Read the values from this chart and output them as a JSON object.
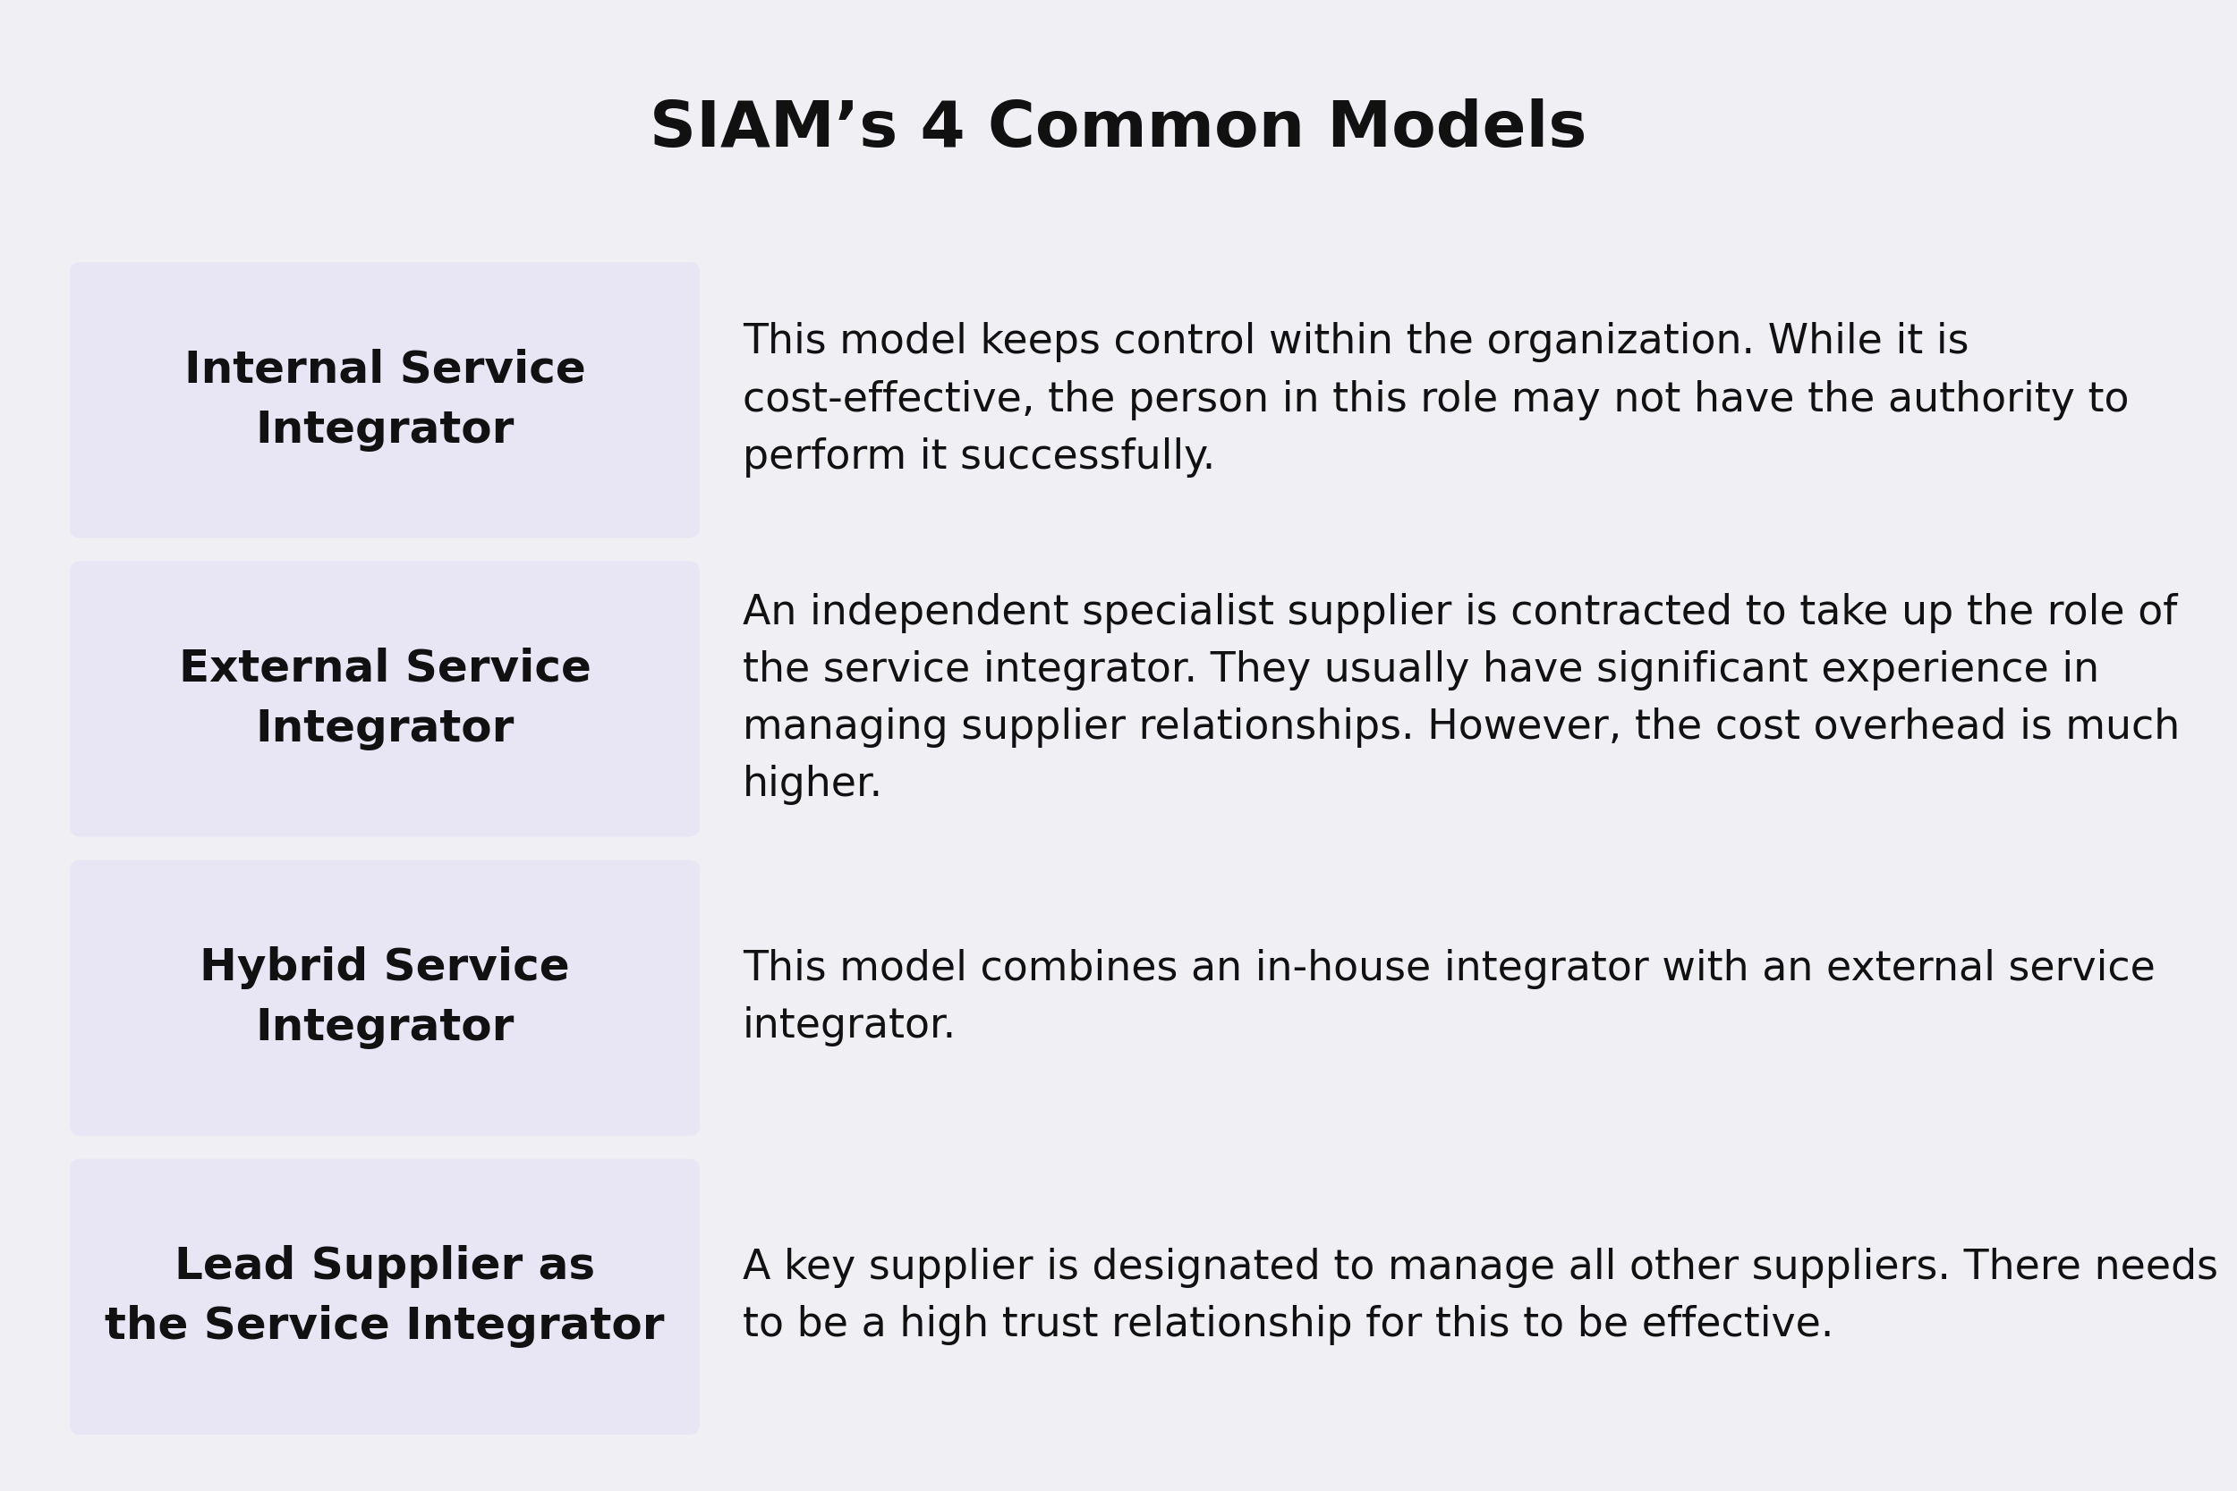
{
  "title": "SIAM’s 4 Common Models",
  "background_color": "#f0eff4",
  "box_color": "#e8e6f5",
  "title_fontsize": 52,
  "label_fontsize": 36,
  "desc_fontsize": 33,
  "text_color": "#111111",
  "rows": [
    {
      "label": "Internal Service\nIntegrator",
      "description": "This model keeps control within the organization. While it is\ncost-effective, the person in this role may not have the authority to\nperform it successfully."
    },
    {
      "label": "External Service\nIntegrator",
      "description": "An independent specialist supplier is contracted to take up the role of\nthe service integrator. They usually have significant experience in\nmanaging supplier relationships. However, the cost overhead is much\nhigher."
    },
    {
      "label": "Hybrid Service\nIntegrator",
      "description": "This model combines an in-house integrator with an external service\nintegrator."
    },
    {
      "label": "Lead Supplier as\nthe Service Integrator",
      "description": "A key supplier is designated to manage all other suppliers. There needs\nto be a high trust relationship for this to be effective."
    }
  ]
}
